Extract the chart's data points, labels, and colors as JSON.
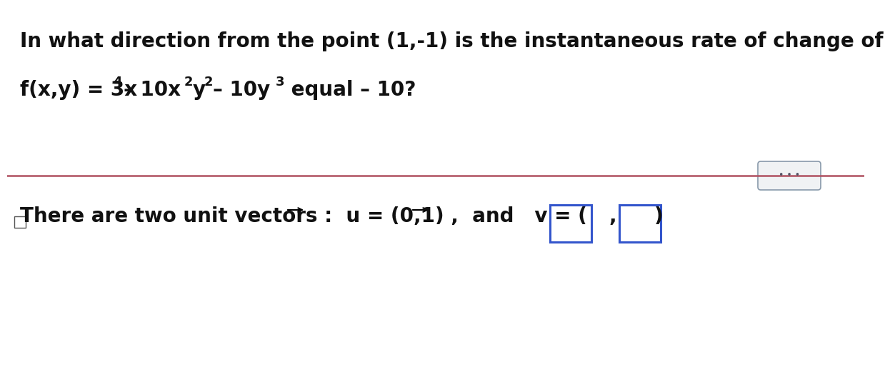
{
  "bg_color": "#ffffff",
  "line1_text": "In what direction from the point (1,-1) is the instantaneous rate of change of",
  "separator_color": "#b05060",
  "separator_lw": 1.8,
  "fontsize_main": 20,
  "fontsize_super": 13,
  "text_color": "#111111"
}
